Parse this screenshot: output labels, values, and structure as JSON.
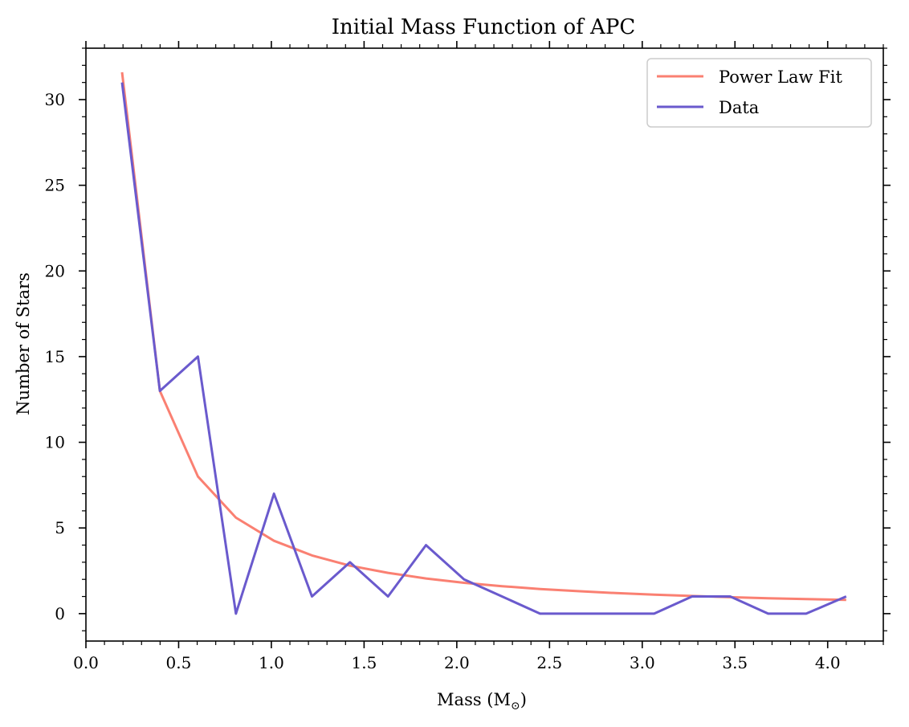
{
  "chart_data": {
    "type": "line",
    "title": "Initial Mass Function of APC",
    "xlabel": "Mass (M",
    "xlabel_sub": "⊙",
    "xlabel_close": ")",
    "ylabel": "Number of Stars",
    "xlim": [
      0.0,
      4.3
    ],
    "ylim": [
      -1.6,
      33.0
    ],
    "xticks": [
      0.0,
      0.5,
      1.0,
      1.5,
      2.0,
      2.5,
      3.0,
      3.5,
      4.0
    ],
    "xtick_labels": [
      "0.0",
      "0.5",
      "1.0",
      "1.5",
      "2.0",
      "2.5",
      "3.0",
      "3.5",
      "4.0"
    ],
    "yticks": [
      0,
      5,
      10,
      15,
      20,
      25,
      30
    ],
    "ytick_labels": [
      "0",
      "5",
      "10",
      "15",
      "20",
      "25",
      "30"
    ],
    "grid": false,
    "legend_position": "top-right",
    "series": [
      {
        "name": "Power Law Fit",
        "color": "#fa8072",
        "x": [
          0.195,
          0.399,
          0.604,
          0.809,
          1.014,
          1.219,
          1.424,
          1.629,
          1.834,
          2.039,
          2.244,
          2.449,
          2.654,
          2.859,
          3.064,
          3.269,
          3.474,
          3.679,
          3.884,
          4.1
        ],
        "y": [
          31.6,
          13.0,
          8.0,
          5.6,
          4.25,
          3.4,
          2.8,
          2.38,
          2.05,
          1.8,
          1.6,
          1.44,
          1.31,
          1.2,
          1.11,
          1.03,
          0.96,
          0.9,
          0.85,
          0.8
        ]
      },
      {
        "name": "Data",
        "color": "#6a5acd",
        "x": [
          0.195,
          0.399,
          0.604,
          0.809,
          1.014,
          1.219,
          1.424,
          1.629,
          1.834,
          2.039,
          2.244,
          2.449,
          2.654,
          2.859,
          3.064,
          3.269,
          3.474,
          3.679,
          3.884,
          4.1
        ],
        "y": [
          31,
          13,
          15,
          0,
          7,
          1,
          3,
          1,
          4,
          2,
          1,
          0,
          0,
          0,
          0,
          1,
          1,
          0,
          0,
          1
        ]
      }
    ]
  }
}
